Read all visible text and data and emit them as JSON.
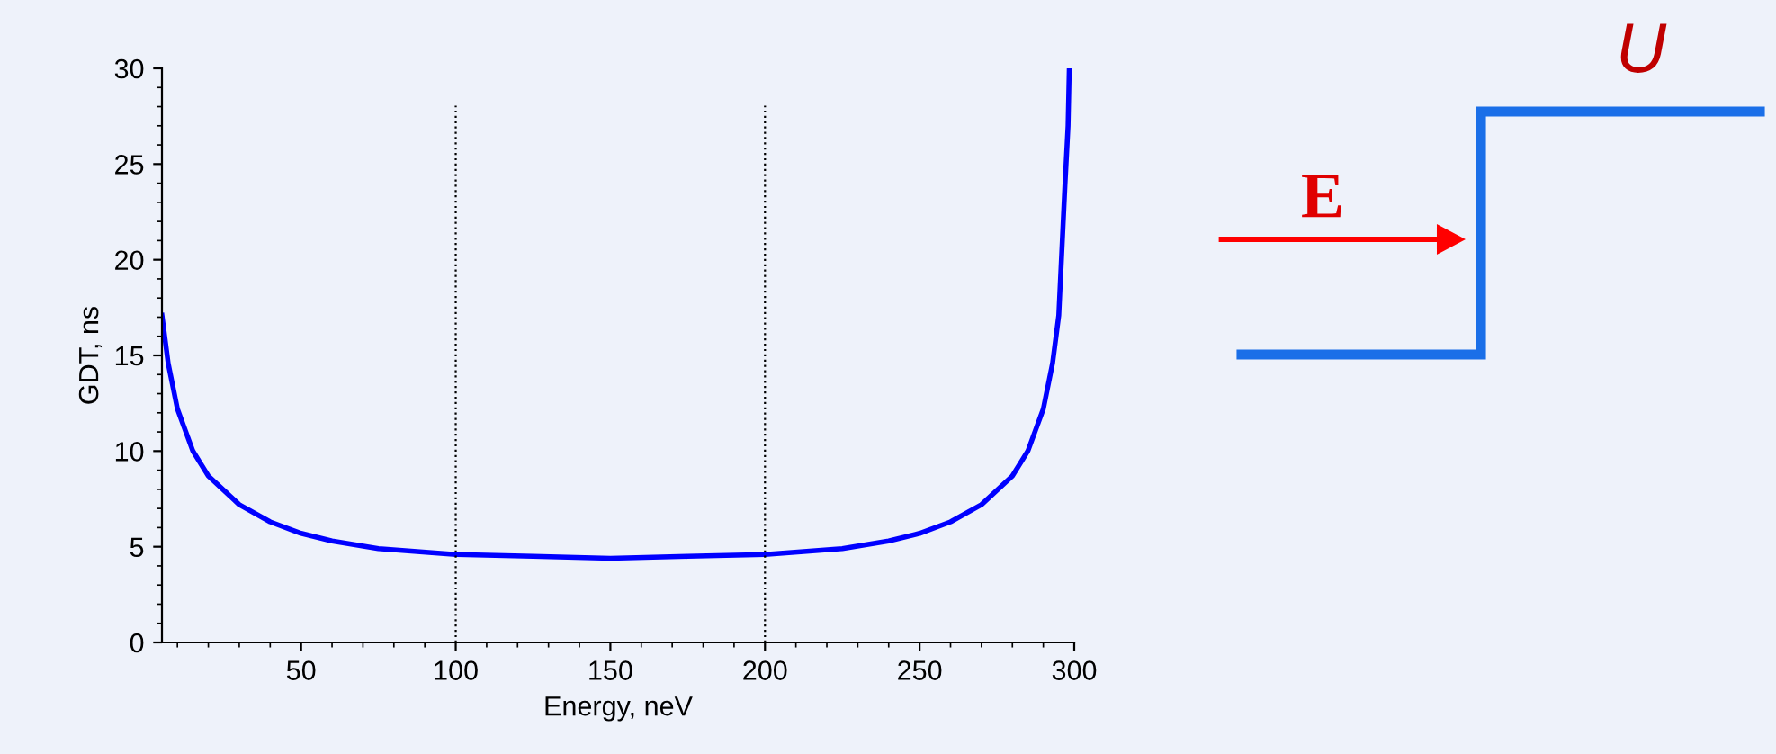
{
  "chart_data": {
    "type": "line",
    "xlabel": "Energy, neV",
    "ylabel": "GDT, ns",
    "x": [
      5,
      7,
      10,
      15,
      20,
      30,
      40,
      50,
      60,
      75,
      100,
      125,
      150,
      175,
      200,
      225,
      240,
      250,
      260,
      270,
      280,
      285,
      290,
      293,
      295,
      297,
      298,
      298.4
    ],
    "series": [
      {
        "color": "#0000ff",
        "values": [
          17.1,
          14.6,
          12.2,
          10.0,
          8.7,
          7.2,
          6.3,
          5.7,
          5.3,
          4.9,
          4.6,
          4.5,
          4.4,
          4.5,
          4.6,
          4.9,
          5.3,
          5.7,
          6.3,
          7.2,
          8.7,
          10.0,
          12.2,
          14.6,
          17.1,
          23.9,
          27.0,
          30
        ]
      }
    ],
    "xlim": [
      5,
      300
    ],
    "xticks": [
      50,
      100,
      150,
      200,
      250,
      300
    ],
    "ylim": [
      0,
      30
    ],
    "yticks": [
      0,
      5,
      10,
      15,
      20,
      25,
      30
    ],
    "ref_lines": [
      {
        "axis": "x",
        "value": 100,
        "line_style": "dotted",
        "color": "#000000"
      },
      {
        "axis": "x",
        "value": 200,
        "line_style": "dotted",
        "color": "#000000"
      }
    ],
    "grid": false,
    "legend": false,
    "marker": "none",
    "line_style": "solid",
    "annotations": [
      "E",
      "U"
    ]
  }
}
